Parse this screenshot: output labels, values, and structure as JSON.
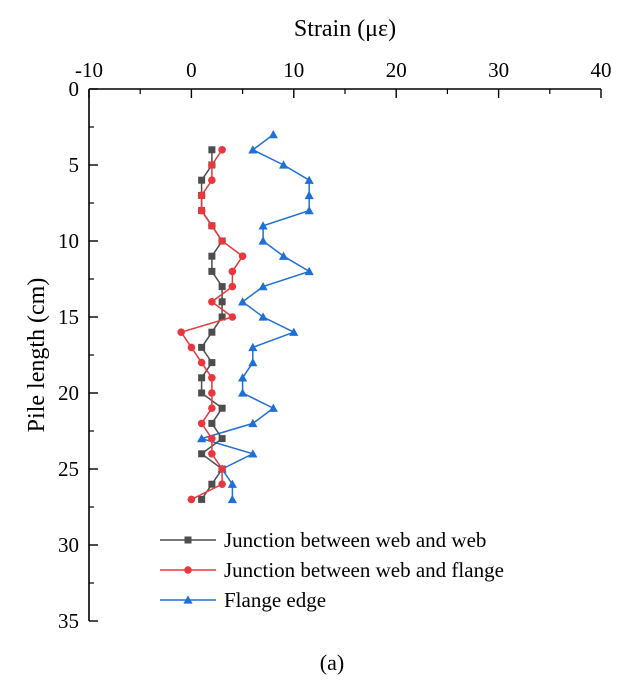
{
  "chart_data": {
    "type": "line",
    "title": "",
    "xlabel": "Strain (με)",
    "ylabel": "Pile length (cm)",
    "x_axis_position": "top",
    "y_axis_inverted": true,
    "xlim": [
      -10,
      40
    ],
    "ylim": [
      0,
      35
    ],
    "xticks": [
      -10,
      0,
      10,
      20,
      30,
      40
    ],
    "yticks": [
      0,
      5,
      10,
      15,
      20,
      25,
      30,
      35
    ],
    "grid": false,
    "legend_position": "bottom-left",
    "caption": "(a)",
    "series": [
      {
        "name": "Junction between web and web",
        "color": "#4d4d4d",
        "marker": "square",
        "points": [
          {
            "x": 2.0,
            "y": 4
          },
          {
            "x": 2.0,
            "y": 5
          },
          {
            "x": 1.0,
            "y": 6
          },
          {
            "x": 1.0,
            "y": 7
          },
          {
            "x": 1.0,
            "y": 8
          },
          {
            "x": 2.0,
            "y": 9
          },
          {
            "x": 3.0,
            "y": 10
          },
          {
            "x": 2.0,
            "y": 11
          },
          {
            "x": 2.0,
            "y": 12
          },
          {
            "x": 3.0,
            "y": 13
          },
          {
            "x": 3.0,
            "y": 14
          },
          {
            "x": 3.0,
            "y": 15
          },
          {
            "x": 2.0,
            "y": 16
          },
          {
            "x": 1.0,
            "y": 17
          },
          {
            "x": 2.0,
            "y": 18
          },
          {
            "x": 1.0,
            "y": 19
          },
          {
            "x": 1.0,
            "y": 20
          },
          {
            "x": 3.0,
            "y": 21
          },
          {
            "x": 2.0,
            "y": 22
          },
          {
            "x": 3.0,
            "y": 23
          },
          {
            "x": 1.0,
            "y": 24
          },
          {
            "x": 3.0,
            "y": 25
          },
          {
            "x": 2.0,
            "y": 26
          },
          {
            "x": 1.0,
            "y": 27
          }
        ]
      },
      {
        "name": "Junction between web and flange",
        "color": "#e8383d",
        "marker": "circle",
        "points": [
          {
            "x": 3.0,
            "y": 4
          },
          {
            "x": 2.0,
            "y": 5
          },
          {
            "x": 2.0,
            "y": 6
          },
          {
            "x": 1.0,
            "y": 7
          },
          {
            "x": 1.0,
            "y": 8
          },
          {
            "x": 2.0,
            "y": 9
          },
          {
            "x": 3.0,
            "y": 10
          },
          {
            "x": 5.0,
            "y": 11
          },
          {
            "x": 4.0,
            "y": 12
          },
          {
            "x": 4.0,
            "y": 13
          },
          {
            "x": 2.0,
            "y": 14
          },
          {
            "x": 4.0,
            "y": 15
          },
          {
            "x": -1.0,
            "y": 16
          },
          {
            "x": 0.0,
            "y": 17
          },
          {
            "x": 1.0,
            "y": 18
          },
          {
            "x": 2.0,
            "y": 19
          },
          {
            "x": 2.0,
            "y": 20
          },
          {
            "x": 2.0,
            "y": 21
          },
          {
            "x": 1.0,
            "y": 22
          },
          {
            "x": 2.0,
            "y": 23
          },
          {
            "x": 2.0,
            "y": 24
          },
          {
            "x": 3.0,
            "y": 25
          },
          {
            "x": 3.0,
            "y": 26
          },
          {
            "x": 0.0,
            "y": 27
          }
        ]
      },
      {
        "name": "Flange edge",
        "color": "#1f6fd6",
        "marker": "triangle",
        "points": [
          {
            "x": 8.0,
            "y": 3
          },
          {
            "x": 6.0,
            "y": 4
          },
          {
            "x": 9.0,
            "y": 5
          },
          {
            "x": 11.5,
            "y": 6
          },
          {
            "x": 11.5,
            "y": 7
          },
          {
            "x": 11.5,
            "y": 8
          },
          {
            "x": 7.0,
            "y": 9
          },
          {
            "x": 7.0,
            "y": 10
          },
          {
            "x": 9.0,
            "y": 11
          },
          {
            "x": 11.5,
            "y": 12
          },
          {
            "x": 7.0,
            "y": 13
          },
          {
            "x": 5.0,
            "y": 14
          },
          {
            "x": 7.0,
            "y": 15
          },
          {
            "x": 10.0,
            "y": 16
          },
          {
            "x": 6.0,
            "y": 17
          },
          {
            "x": 6.0,
            "y": 18
          },
          {
            "x": 5.0,
            "y": 19
          },
          {
            "x": 5.0,
            "y": 20
          },
          {
            "x": 8.0,
            "y": 21
          },
          {
            "x": 6.0,
            "y": 22
          },
          {
            "x": 1.0,
            "y": 23
          },
          {
            "x": 6.0,
            "y": 24
          },
          {
            "x": 3.0,
            "y": 25
          },
          {
            "x": 4.0,
            "y": 26
          },
          {
            "x": 4.0,
            "y": 27
          }
        ]
      }
    ]
  }
}
